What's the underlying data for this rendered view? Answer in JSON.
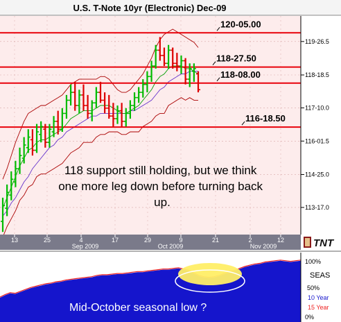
{
  "title": "U.S. T-Note 10yr (Electronic) Dec-09",
  "logo_text": "TNT",
  "colors": {
    "background": "#fdecec",
    "level_line": "#e8000a",
    "bar_up": "#00bb00",
    "bar_down": "#dd0000",
    "ma_fast": "#00a000",
    "ma_slow": "#6633cc",
    "band": "#aa0000",
    "axis_band": "#7a7a8a",
    "seas_fill": "#1515cc",
    "seas_line": "#ee2222",
    "ellipse_fill": "#ffee66"
  },
  "chart_data": [
    {
      "type": "candlestick",
      "title": "U.S. T-Note 10yr (Electronic) Dec-09",
      "ylim": [
        112.5,
        120.8
      ],
      "y_ticks": [
        {
          "value": 113.53,
          "label": "113-17.0"
        },
        {
          "value": 114.78,
          "label": "114-25.0"
        },
        {
          "value": 116.05,
          "label": "116-01.5"
        },
        {
          "value": 117.31,
          "label": "117-10.0"
        },
        {
          "value": 118.56,
          "label": "118-18.5"
        },
        {
          "value": 119.83,
          "label": "119-26.5"
        }
      ],
      "x_tick_labels": [
        "13",
        "25",
        "4",
        "17",
        "29",
        "9",
        "21",
        "2",
        "12"
      ],
      "x_month_labels": [
        "Sep 2009",
        "Oct 2009",
        "Nov 2009"
      ],
      "levels": [
        {
          "label": "120-05.00",
          "value": 120.16
        },
        {
          "label": "118-27.50",
          "value": 118.86
        },
        {
          "label": "118-08.00",
          "value": 118.25
        },
        {
          "label": "116-18.50",
          "value": 116.58
        }
      ],
      "annotation": "118 support still holding, but we think one more leg down before turning back up.",
      "bars": [
        {
          "o": 113.0,
          "h": 113.9,
          "l": 112.6,
          "c": 113.6
        },
        {
          "o": 113.5,
          "h": 114.4,
          "l": 113.2,
          "c": 114.1
        },
        {
          "o": 114.0,
          "h": 114.9,
          "l": 113.8,
          "c": 114.6
        },
        {
          "o": 114.5,
          "h": 115.3,
          "l": 114.3,
          "c": 115.0
        },
        {
          "o": 115.0,
          "h": 115.8,
          "l": 114.8,
          "c": 115.5
        },
        {
          "o": 115.4,
          "h": 116.2,
          "l": 115.2,
          "c": 115.9
        },
        {
          "o": 115.8,
          "h": 116.5,
          "l": 115.6,
          "c": 116.2
        },
        {
          "o": 116.1,
          "h": 116.5,
          "l": 115.5,
          "c": 115.7
        },
        {
          "o": 115.7,
          "h": 116.7,
          "l": 115.6,
          "c": 116.4
        },
        {
          "o": 116.3,
          "h": 116.8,
          "l": 116.0,
          "c": 116.6
        },
        {
          "o": 116.5,
          "h": 116.7,
          "l": 115.8,
          "c": 116.0
        },
        {
          "o": 116.0,
          "h": 116.7,
          "l": 115.8,
          "c": 116.5
        },
        {
          "o": 116.4,
          "h": 117.0,
          "l": 116.2,
          "c": 116.8
        },
        {
          "o": 116.8,
          "h": 117.2,
          "l": 116.3,
          "c": 116.5
        },
        {
          "o": 116.5,
          "h": 117.3,
          "l": 116.4,
          "c": 117.1
        },
        {
          "o": 117.1,
          "h": 117.8,
          "l": 116.9,
          "c": 117.6
        },
        {
          "o": 117.6,
          "h": 118.2,
          "l": 117.4,
          "c": 117.9
        },
        {
          "o": 117.9,
          "h": 118.3,
          "l": 117.2,
          "c": 117.4
        },
        {
          "o": 117.4,
          "h": 118.0,
          "l": 117.1,
          "c": 117.8
        },
        {
          "o": 117.8,
          "h": 118.2,
          "l": 117.2,
          "c": 117.4
        },
        {
          "o": 117.4,
          "h": 117.8,
          "l": 116.9,
          "c": 117.1
        },
        {
          "o": 117.1,
          "h": 117.6,
          "l": 116.8,
          "c": 117.5
        },
        {
          "o": 117.5,
          "h": 118.1,
          "l": 117.3,
          "c": 117.9
        },
        {
          "o": 117.9,
          "h": 118.3,
          "l": 117.5,
          "c": 117.6
        },
        {
          "o": 117.6,
          "h": 117.9,
          "l": 117.1,
          "c": 117.3
        },
        {
          "o": 117.3,
          "h": 117.8,
          "l": 116.9,
          "c": 117.0
        },
        {
          "o": 117.0,
          "h": 117.5,
          "l": 116.6,
          "c": 116.9
        },
        {
          "o": 116.9,
          "h": 117.4,
          "l": 116.7,
          "c": 117.2
        },
        {
          "o": 117.2,
          "h": 117.5,
          "l": 116.6,
          "c": 116.8
        },
        {
          "o": 116.8,
          "h": 117.3,
          "l": 116.6,
          "c": 117.1
        },
        {
          "o": 117.1,
          "h": 117.6,
          "l": 116.9,
          "c": 117.4
        },
        {
          "o": 117.4,
          "h": 117.9,
          "l": 117.2,
          "c": 117.7
        },
        {
          "o": 117.7,
          "h": 118.1,
          "l": 117.5,
          "c": 117.9
        },
        {
          "o": 117.9,
          "h": 118.4,
          "l": 117.7,
          "c": 118.2
        },
        {
          "o": 118.2,
          "h": 118.7,
          "l": 117.9,
          "c": 118.5
        },
        {
          "o": 118.5,
          "h": 119.1,
          "l": 118.3,
          "c": 118.9
        },
        {
          "o": 118.9,
          "h": 119.7,
          "l": 118.8,
          "c": 119.5
        },
        {
          "o": 119.5,
          "h": 120.0,
          "l": 119.1,
          "c": 119.3
        },
        {
          "o": 119.3,
          "h": 119.6,
          "l": 118.9,
          "c": 119.0
        },
        {
          "o": 119.0,
          "h": 119.7,
          "l": 118.8,
          "c": 119.5
        },
        {
          "o": 119.5,
          "h": 119.6,
          "l": 118.8,
          "c": 119.0
        },
        {
          "o": 119.0,
          "h": 119.4,
          "l": 118.7,
          "c": 118.9
        },
        {
          "o": 118.9,
          "h": 119.3,
          "l": 118.6,
          "c": 119.1
        },
        {
          "o": 119.1,
          "h": 119.2,
          "l": 118.2,
          "c": 118.4
        },
        {
          "o": 118.4,
          "h": 119.0,
          "l": 118.1,
          "c": 118.8
        },
        {
          "o": 118.7,
          "h": 119.0,
          "l": 118.3,
          "c": 118.8
        },
        {
          "o": 118.6,
          "h": 118.7,
          "l": 117.9,
          "c": 118.0
        }
      ],
      "ma_fast": [
        113.5,
        113.9,
        114.3,
        114.7,
        115.1,
        115.4,
        115.7,
        115.8,
        116.0,
        116.1,
        116.1,
        116.2,
        116.3,
        116.4,
        116.5,
        116.7,
        116.9,
        117.0,
        117.1,
        117.2,
        117.2,
        117.2,
        117.3,
        117.4,
        117.4,
        117.4,
        117.3,
        117.2,
        117.1,
        117.1,
        117.2,
        117.3,
        117.4,
        117.6,
        117.8,
        118.0,
        118.3,
        118.5,
        118.6,
        118.8,
        118.9,
        118.9,
        118.9,
        118.8,
        118.8,
        118.7,
        118.6
      ],
      "ma_slow": [
        113.2,
        113.4,
        113.7,
        113.9,
        114.2,
        114.5,
        114.7,
        115.0,
        115.2,
        115.4,
        115.6,
        115.8,
        115.9,
        116.1,
        116.2,
        116.4,
        116.5,
        116.6,
        116.7,
        116.8,
        116.9,
        117.0,
        117.0,
        117.1,
        117.1,
        117.1,
        117.1,
        117.1,
        117.1,
        117.1,
        117.2,
        117.2,
        117.3,
        117.4,
        117.5,
        117.6,
        117.8,
        118.0,
        118.1,
        118.3,
        118.4,
        118.5,
        118.6,
        118.6,
        118.7,
        118.7,
        118.7
      ],
      "band_upper": [
        114.6,
        115.0,
        115.5,
        116.0,
        116.4,
        116.8,
        117.1,
        117.2,
        117.3,
        117.4,
        117.4,
        117.5,
        117.6,
        117.7,
        117.8,
        118.0,
        118.2,
        118.3,
        118.4,
        118.4,
        118.4,
        118.4,
        118.4,
        118.5,
        118.5,
        118.4,
        118.2,
        118.0,
        117.9,
        117.9,
        118.0,
        118.2,
        118.4,
        118.6,
        118.9,
        119.2,
        119.6,
        119.9,
        120.1,
        120.2,
        120.3,
        120.2,
        120.1,
        120.0,
        119.9,
        119.8,
        119.6
      ],
      "band_lower": [
        112.4,
        112.8,
        113.1,
        113.4,
        113.8,
        114.0,
        114.3,
        114.4,
        114.7,
        114.8,
        114.8,
        114.9,
        115.0,
        115.1,
        115.2,
        115.4,
        115.6,
        115.7,
        115.8,
        116.0,
        116.0,
        116.0,
        116.2,
        116.3,
        116.3,
        116.4,
        116.4,
        116.4,
        116.3,
        116.3,
        116.4,
        116.4,
        116.4,
        116.6,
        116.7,
        116.8,
        117.0,
        117.1,
        117.1,
        117.4,
        117.5,
        117.6,
        117.7,
        117.6,
        117.7,
        117.6,
        117.6
      ]
    },
    {
      "type": "area",
      "label": "SEAS",
      "y_ticks": [
        "100%",
        "50%",
        "0%"
      ],
      "legend": [
        {
          "name": "10 Year",
          "color": "#1515cc"
        },
        {
          "name": "15 Year",
          "color": "#ee2222"
        }
      ],
      "note": "Mid-October seasonal low ?",
      "ylim": [
        0,
        100
      ],
      "values_10yr": [
        38,
        42,
        45,
        44,
        47,
        50,
        53,
        55,
        57,
        59,
        60,
        62,
        63,
        65,
        66,
        67,
        68,
        69,
        70,
        72,
        73,
        73,
        74,
        75,
        75,
        76,
        77,
        78,
        78,
        79,
        80,
        81,
        82,
        82,
        83,
        84,
        82,
        80,
        76,
        72,
        70,
        69,
        70,
        72,
        75,
        78,
        80,
        83,
        86,
        88,
        90,
        91,
        93,
        94,
        95,
        96,
        95,
        94,
        95,
        96
      ],
      "values_15yr": [
        39,
        43,
        46,
        45,
        48,
        51,
        54,
        56,
        58,
        60,
        61,
        63,
        64,
        66,
        67,
        68,
        69,
        70,
        71,
        73,
        74,
        74,
        75,
        76,
        76,
        77,
        78,
        79,
        79,
        80,
        81,
        82,
        83,
        83,
        84,
        85,
        83,
        81,
        77,
        73,
        71,
        70,
        71,
        73,
        76,
        79,
        81,
        84,
        87,
        89,
        91,
        92,
        94,
        95,
        96,
        97,
        96,
        95,
        96,
        97
      ]
    }
  ]
}
